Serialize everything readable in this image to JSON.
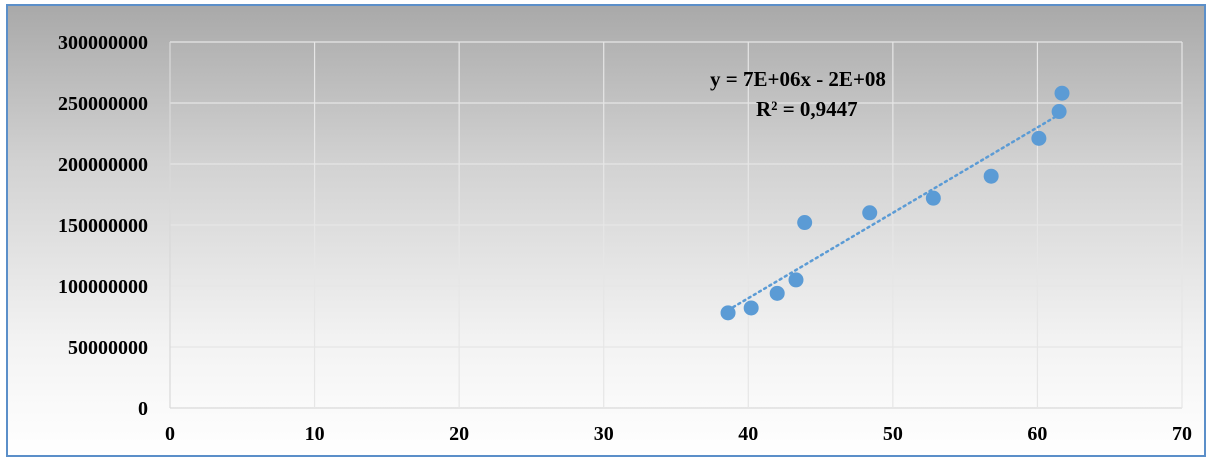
{
  "chart_data": {
    "type": "scatter",
    "title": "",
    "xlabel": "",
    "ylabel": "",
    "xlim": [
      0,
      70
    ],
    "ylim": [
      0,
      300000000
    ],
    "x_ticks": [
      "0",
      "10",
      "20",
      "30",
      "40",
      "50",
      "60",
      "70"
    ],
    "y_ticks": [
      "0",
      "50000000",
      "100000000",
      "150000000",
      "200000000",
      "250000000",
      "300000000"
    ],
    "grid": true,
    "legend": "none",
    "series": [
      {
        "color": "#5b9bd5",
        "points": [
          {
            "x": 38.6,
            "y": 78000000
          },
          {
            "x": 40.2,
            "y": 82000000
          },
          {
            "x": 42.0,
            "y": 94000000
          },
          {
            "x": 43.3,
            "y": 105000000
          },
          {
            "x": 43.9,
            "y": 152000000
          },
          {
            "x": 48.4,
            "y": 160000000
          },
          {
            "x": 52.8,
            "y": 172000000
          },
          {
            "x": 56.8,
            "y": 190000000
          },
          {
            "x": 60.1,
            "y": 221000000
          },
          {
            "x": 61.5,
            "y": 243000000
          },
          {
            "x": 61.7,
            "y": 258000000
          }
        ]
      }
    ],
    "trendline": {
      "type": "linear",
      "style": "dotted",
      "color": "#5b9bd5",
      "equation": "y = 7E+06x - 2E+08",
      "r_squared": "R² = 0,9447"
    }
  }
}
